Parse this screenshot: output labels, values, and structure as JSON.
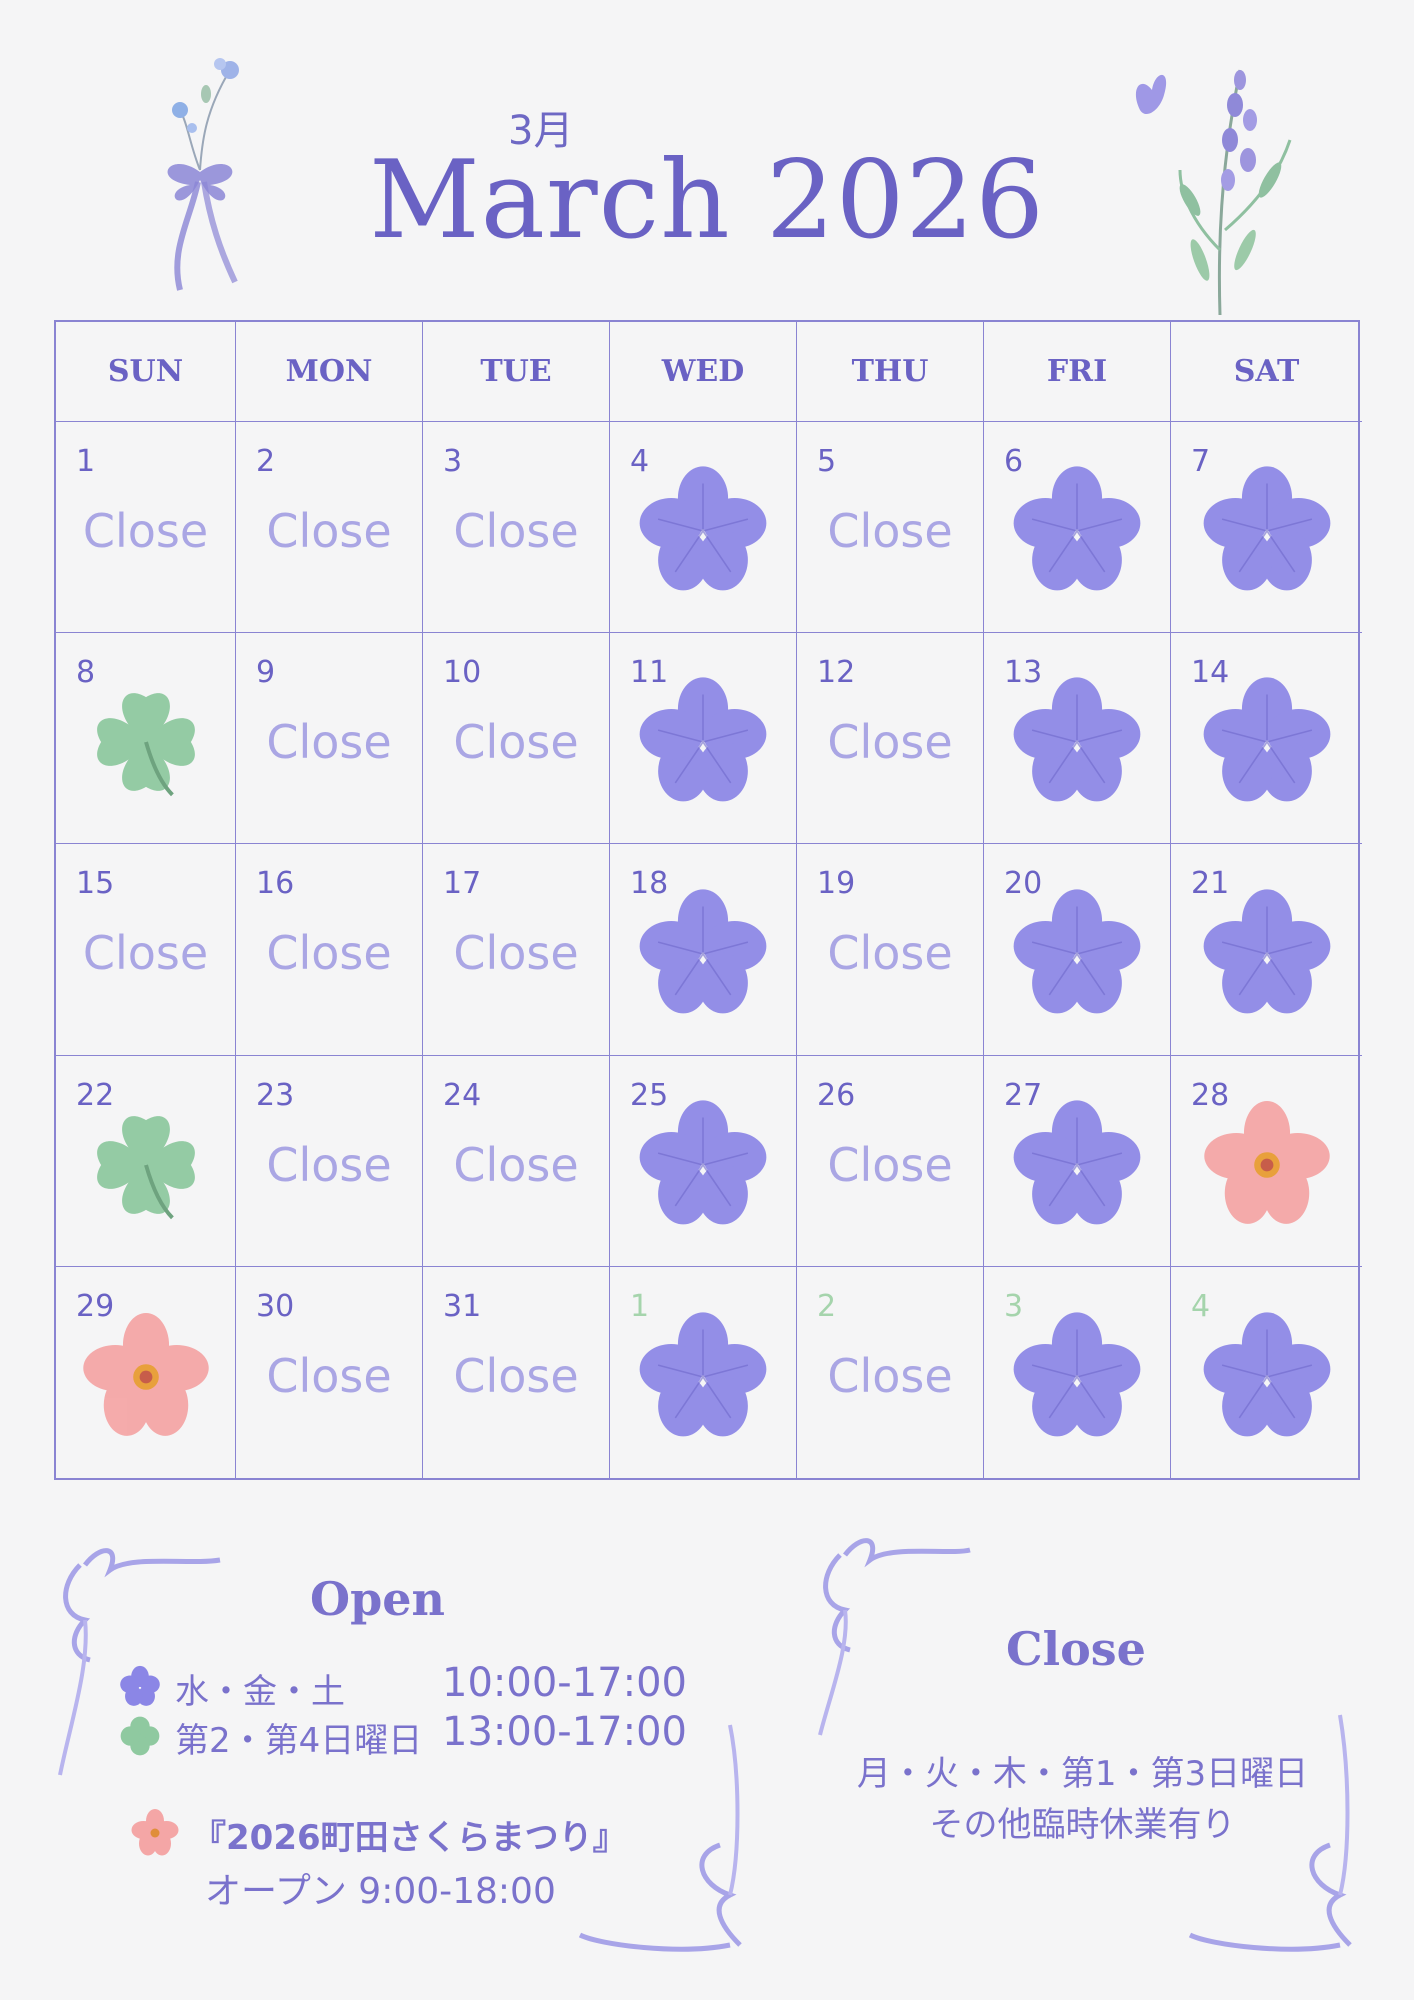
{
  "header": {
    "month_jp": "3月",
    "title": "March 2026"
  },
  "weekdays": [
    "SUN",
    "MON",
    "TUE",
    "WED",
    "THU",
    "FRI",
    "SAT"
  ],
  "close_label": "Close",
  "days": [
    {
      "num": "1",
      "type": "close"
    },
    {
      "num": "2",
      "type": "close"
    },
    {
      "num": "3",
      "type": "close"
    },
    {
      "num": "4",
      "type": "blue"
    },
    {
      "num": "5",
      "type": "close"
    },
    {
      "num": "6",
      "type": "blue"
    },
    {
      "num": "7",
      "type": "blue"
    },
    {
      "num": "8",
      "type": "green"
    },
    {
      "num": "9",
      "type": "close"
    },
    {
      "num": "10",
      "type": "close"
    },
    {
      "num": "11",
      "type": "blue"
    },
    {
      "num": "12",
      "type": "close"
    },
    {
      "num": "13",
      "type": "blue"
    },
    {
      "num": "14",
      "type": "blue"
    },
    {
      "num": "15",
      "type": "close"
    },
    {
      "num": "16",
      "type": "close"
    },
    {
      "num": "17",
      "type": "close"
    },
    {
      "num": "18",
      "type": "blue"
    },
    {
      "num": "19",
      "type": "close"
    },
    {
      "num": "20",
      "type": "blue"
    },
    {
      "num": "21",
      "type": "blue"
    },
    {
      "num": "22",
      "type": "green"
    },
    {
      "num": "23",
      "type": "close"
    },
    {
      "num": "24",
      "type": "close"
    },
    {
      "num": "25",
      "type": "blue"
    },
    {
      "num": "26",
      "type": "close"
    },
    {
      "num": "27",
      "type": "blue"
    },
    {
      "num": "28",
      "type": "pink"
    },
    {
      "num": "29",
      "type": "pink"
    },
    {
      "num": "30",
      "type": "close"
    },
    {
      "num": "31",
      "type": "close"
    },
    {
      "num": "1",
      "type": "blue",
      "next_month": true
    },
    {
      "num": "2",
      "type": "close",
      "next_month": true
    },
    {
      "num": "3",
      "type": "blue",
      "next_month": true
    },
    {
      "num": "4",
      "type": "blue",
      "next_month": true
    }
  ],
  "open_section": {
    "heading": "Open",
    "row1_days": "水・金・土",
    "row1_hours": "10:00-17:00",
    "row2_days": "第2・第4日曜日",
    "row2_hours": "13:00-17:00",
    "event_title": "『2026町田さくらまつり』",
    "event_hours": "オープン 9:00-18:00"
  },
  "close_section": {
    "heading": "Close",
    "line1": "月・火・木・第1・第3日曜日",
    "line2": "その他臨時休業有り"
  },
  "colors": {
    "accent": "#6a62c4",
    "close_text": "#aaa6e4",
    "blue_flower": "#8b86e6",
    "green_clover": "#8fc9a0",
    "pink_flower": "#f4a6a6",
    "next_month_num": "#a5d4ac"
  },
  "icons": {
    "open_weekday": "blue-flower-icon",
    "open_sunday": "green-clover-icon",
    "event": "pink-flower-icon"
  }
}
